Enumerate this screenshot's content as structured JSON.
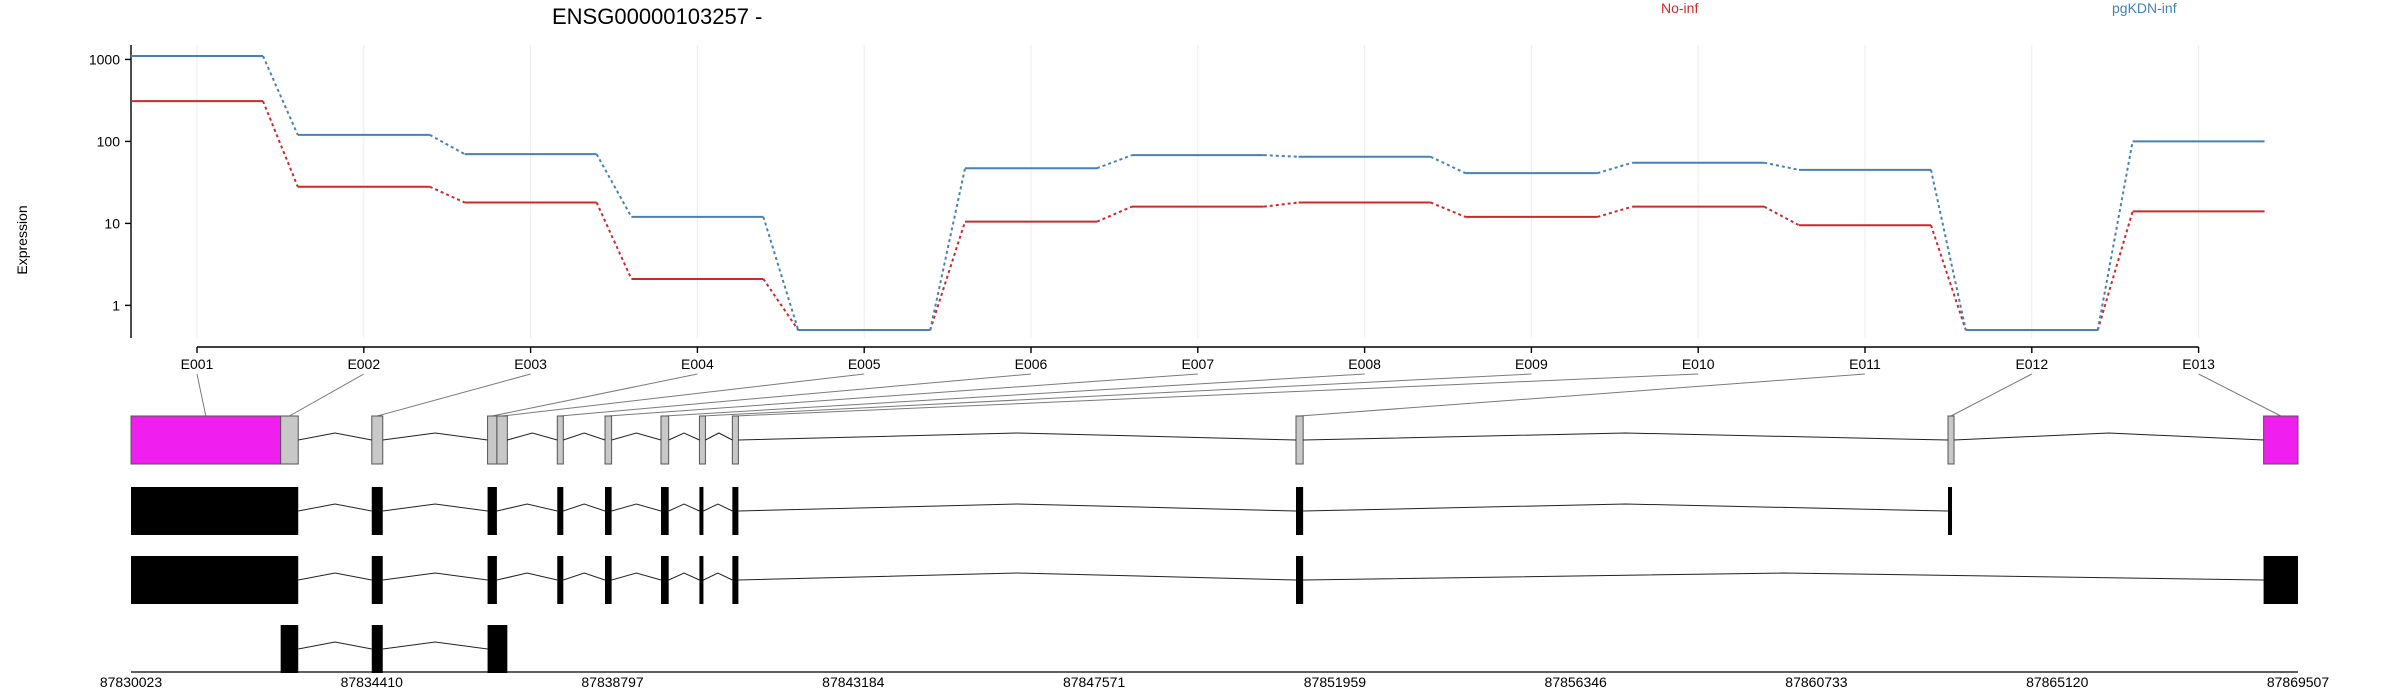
{
  "chart_data": {
    "type": "line",
    "title": "ENSG00000103257 -",
    "ylabel": "Expression",
    "yscale": "log",
    "ylim": [
      0.4,
      1500
    ],
    "yticks": [
      1,
      10,
      100,
      1000
    ],
    "ytick_labels": [
      "1",
      "10",
      "100",
      "1000"
    ],
    "categories": [
      "E001",
      "E002",
      "E003",
      "E004",
      "E005",
      "E006",
      "E007",
      "E008",
      "E009",
      "E010",
      "E011",
      "E012",
      "E013"
    ],
    "grid": true,
    "legend": "top",
    "series": [
      {
        "name": "No-inf",
        "color": "#cc2a2a",
        "values": [
          310,
          28,
          18,
          2.1,
          0.5,
          10.5,
          16,
          18,
          12,
          16,
          9.5,
          0.5,
          14
        ]
      },
      {
        "name": "pgKDN-inf",
        "color": "#4682b4",
        "values": [
          1100,
          120,
          70,
          12,
          0.5,
          47,
          68,
          65,
          41,
          55,
          45,
          0.5,
          100
        ]
      }
    ],
    "genomic_axis": {
      "range": [
        87830023,
        87869507
      ],
      "ticks": [
        87830023,
        87834410,
        87838797,
        87843184,
        87847571,
        87851959,
        87856346,
        87860733,
        87865120,
        87869507
      ],
      "tick_labels": [
        "87830023",
        "87834410",
        "87838797",
        "87843184",
        "87847571",
        "87851959",
        "87856346",
        "87860733",
        "87865120",
        "87869507"
      ]
    },
    "exon_bins": [
      {
        "id": "E001",
        "start": 87830023,
        "end": 87832750,
        "highlight": true
      },
      {
        "id": "E002",
        "start": 87832750,
        "end": 87833070,
        "highlight": false
      },
      {
        "id": "E003",
        "start": 87834410,
        "end": 87834610,
        "highlight": false
      },
      {
        "id": "E004",
        "start": 87836520,
        "end": 87836690,
        "highlight": false
      },
      {
        "id": "E005",
        "start": 87836690,
        "end": 87836880,
        "highlight": false
      },
      {
        "id": "E006",
        "start": 87837790,
        "end": 87837900,
        "highlight": false
      },
      {
        "id": "E007",
        "start": 87838660,
        "end": 87838780,
        "highlight": false
      },
      {
        "id": "E008",
        "start": 87839680,
        "end": 87839820,
        "highlight": false
      },
      {
        "id": "E009",
        "start": 87840380,
        "end": 87840420,
        "highlight": false
      },
      {
        "id": "E010",
        "start": 87840980,
        "end": 87841090,
        "highlight": false
      },
      {
        "id": "E011",
        "start": 87851250,
        "end": 87851380,
        "highlight": false
      },
      {
        "id": "E012",
        "start": 87863130,
        "end": 87863200,
        "highlight": false
      },
      {
        "id": "E013",
        "start": 87868880,
        "end": 87869507,
        "highlight": true
      }
    ],
    "transcripts": [
      {
        "exons": [
          [
            87830023,
            87833070
          ],
          [
            87834410,
            87834610
          ],
          [
            87836520,
            87836690
          ],
          [
            87837790,
            87837900
          ],
          [
            87838660,
            87838780
          ],
          [
            87839680,
            87839820
          ],
          [
            87840380,
            87840420
          ],
          [
            87840980,
            87841090
          ],
          [
            87851250,
            87851380
          ],
          [
            87863130,
            87863200
          ]
        ]
      },
      {
        "exons": [
          [
            87830023,
            87833070
          ],
          [
            87834410,
            87834610
          ],
          [
            87836520,
            87836690
          ],
          [
            87837790,
            87837900
          ],
          [
            87838660,
            87838780
          ],
          [
            87839680,
            87839820
          ],
          [
            87840380,
            87840420
          ],
          [
            87840980,
            87841090
          ],
          [
            87851250,
            87851380
          ],
          [
            87868880,
            87869507
          ]
        ]
      },
      {
        "exons": [
          [
            87832750,
            87833070
          ],
          [
            87834410,
            87834610
          ],
          [
            87836520,
            87836880
          ]
        ]
      }
    ],
    "colors": {
      "highlight": "#f01ff0",
      "bin": "#c8c8c8",
      "transcript": "#000000"
    }
  }
}
